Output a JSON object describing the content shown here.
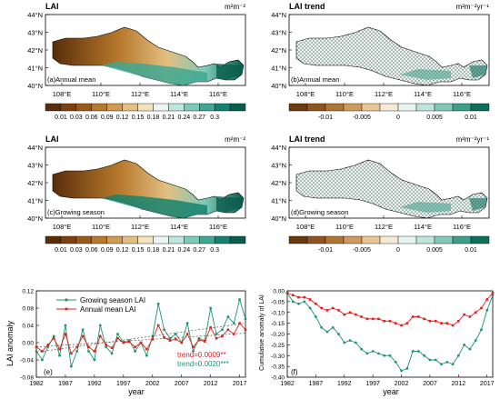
{
  "colors": {
    "lai_scale": [
      "#5a2d0a",
      "#7b420f",
      "#9a5b1a",
      "#b7792c",
      "#cf9a52",
      "#e3bf82",
      "#f4e2bd",
      "#eaf6f1",
      "#bde6dc",
      "#7ccab7",
      "#3ea892",
      "#14826f",
      "#0a5c4e"
    ],
    "trend_scale": [
      "#6b3a10",
      "#8f5520",
      "#b07434",
      "#cd9a5c",
      "#e7c796",
      "#f5ebd4",
      "#e8f5f1",
      "#bfe5db",
      "#84c9b7",
      "#3d9f88",
      "#0e6f5c"
    ],
    "growing_line": "#1e9473",
    "annual_line": "#e02020",
    "trend_red": "#e02020",
    "trend_green": "#1e9473"
  },
  "map_panels": [
    {
      "id": "a",
      "title": "LAI",
      "unit": "m²m⁻²",
      "label": "(a)Annual mean",
      "kind": "lai_annual",
      "colorbar_ticks": [
        "0.01",
        "0.03",
        "0.06",
        "0.09",
        "0.12",
        "0.15",
        "0.18",
        "0.21",
        "0.24",
        "0.27",
        "0.3"
      ]
    },
    {
      "id": "b",
      "title": "LAI trend",
      "unit": "m²m⁻²yr⁻¹",
      "label": "(b)Annual mean",
      "kind": "trend",
      "colorbar_ticks": [
        "-0.01",
        "-0.005",
        "0",
        "0.005",
        "0.01"
      ]
    },
    {
      "id": "c",
      "title": "LAI",
      "unit": "m²m⁻²",
      "label": "(c)Growing season",
      "kind": "lai_growing",
      "colorbar_ticks": [
        "0.01",
        "0.03",
        "0.06",
        "0.09",
        "0.12",
        "0.15",
        "0.18",
        "0.21",
        "0.24",
        "0.27",
        "0.3"
      ]
    },
    {
      "id": "d",
      "title": "LAI trend",
      "unit": "m²m⁻²yr⁻¹",
      "label": "(d)Growing season",
      "kind": "trend",
      "colorbar_ticks": [
        "-0.01",
        "-0.005",
        "0",
        "0.005",
        "0.01"
      ]
    }
  ],
  "map_axes": {
    "lat_labels": [
      "44°N",
      "43°N",
      "42°N",
      "41°N",
      "40°N"
    ],
    "lon_labels": [
      "108°E",
      "110°E",
      "112°E",
      "114°E",
      "116°E"
    ]
  },
  "chart_data": [
    {
      "type": "line",
      "panel_label": "(e)",
      "xlabel": "year",
      "ylabel": "LAI anomaly",
      "xlim": [
        1982,
        2018
      ],
      "ylim": [
        -0.08,
        0.12
      ],
      "xticks": [
        "1982",
        "1987",
        "1992",
        "1997",
        "2002",
        "2007",
        "2012",
        "2017"
      ],
      "yticks": [
        "-0.08",
        "-0.04",
        "0.00",
        "0.04",
        "0.08",
        "0.12"
      ],
      "x": [
        1982,
        1983,
        1984,
        1985,
        1986,
        1987,
        1988,
        1989,
        1990,
        1991,
        1992,
        1993,
        1994,
        1995,
        1996,
        1997,
        1998,
        1999,
        2000,
        2001,
        2002,
        2003,
        2004,
        2005,
        2006,
        2007,
        2008,
        2009,
        2010,
        2011,
        2012,
        2013,
        2014,
        2015,
        2016,
        2017,
        2018
      ],
      "series": [
        {
          "name": "Growing season LAI",
          "values": [
            -0.02,
            -0.04,
            -0.01,
            0.015,
            -0.03,
            0.04,
            -0.055,
            -0.02,
            0.03,
            -0.02,
            -0.04,
            0.04,
            -0.01,
            -0.025,
            0.02,
            0.0,
            0.005,
            -0.02,
            0.0,
            -0.03,
            0.015,
            0.09,
            0.03,
            0.01,
            0.02,
            0.0,
            0.045,
            -0.02,
            0.01,
            0.005,
            0.08,
            0.02,
            0.03,
            0.06,
            0.045,
            0.1,
            0.055
          ]
        },
        {
          "name": "Annual mean LAI",
          "values": [
            -0.01,
            -0.02,
            -0.005,
            0.01,
            -0.015,
            0.02,
            -0.025,
            -0.01,
            0.015,
            -0.01,
            -0.02,
            0.015,
            -0.005,
            -0.012,
            0.01,
            0.0,
            0.002,
            -0.01,
            0.0,
            -0.015,
            0.008,
            0.04,
            0.012,
            0.005,
            0.008,
            0.0,
            0.02,
            -0.01,
            0.006,
            0.003,
            0.035,
            0.01,
            0.015,
            0.03,
            0.02,
            0.045,
            0.03
          ]
        }
      ],
      "annotations": [
        "trend=0.0009**",
        "trend=0.0020***"
      ]
    },
    {
      "type": "line",
      "panel_label": "(f)",
      "xlabel": "year",
      "ylabel": "Cumulative anomaly of LAI",
      "xlim": [
        1982,
        2018
      ],
      "ylim": [
        -0.4,
        0.0
      ],
      "xticks": [
        "1982",
        "1987",
        "1992",
        "1997",
        "2002",
        "2007",
        "2012",
        "2017"
      ],
      "yticks": [
        "0.00",
        "-0.05",
        "-0.10",
        "-0.15",
        "-0.20",
        "-0.25",
        "-0.30",
        "-0.35",
        "-0.40"
      ],
      "x": [
        1982,
        1983,
        1984,
        1985,
        1986,
        1987,
        1988,
        1989,
        1990,
        1991,
        1992,
        1993,
        1994,
        1995,
        1996,
        1997,
        1998,
        1999,
        2000,
        2001,
        2002,
        2003,
        2004,
        2005,
        2006,
        2007,
        2008,
        2009,
        2010,
        2011,
        2012,
        2013,
        2014,
        2015,
        2016,
        2017,
        2018
      ],
      "series": [
        {
          "name": "Growing season",
          "values": [
            -0.01,
            -0.05,
            -0.06,
            -0.05,
            -0.08,
            -0.12,
            -0.17,
            -0.19,
            -0.17,
            -0.2,
            -0.24,
            -0.23,
            -0.24,
            -0.27,
            -0.29,
            -0.28,
            -0.29,
            -0.3,
            -0.3,
            -0.33,
            -0.37,
            -0.36,
            -0.28,
            -0.28,
            -0.3,
            -0.32,
            -0.32,
            -0.34,
            -0.33,
            -0.34,
            -0.3,
            -0.25,
            -0.27,
            -0.23,
            -0.18,
            -0.09,
            -0.02
          ]
        },
        {
          "name": "Annual mean",
          "values": [
            -0.01,
            -0.02,
            -0.03,
            -0.03,
            -0.04,
            -0.06,
            -0.08,
            -0.09,
            -0.08,
            -0.09,
            -0.11,
            -0.1,
            -0.11,
            -0.12,
            -0.13,
            -0.13,
            -0.13,
            -0.14,
            -0.14,
            -0.15,
            -0.16,
            -0.15,
            -0.12,
            -0.12,
            -0.13,
            -0.14,
            -0.14,
            -0.15,
            -0.15,
            -0.16,
            -0.14,
            -0.11,
            -0.12,
            -0.1,
            -0.08,
            -0.04,
            -0.01
          ]
        }
      ]
    }
  ]
}
